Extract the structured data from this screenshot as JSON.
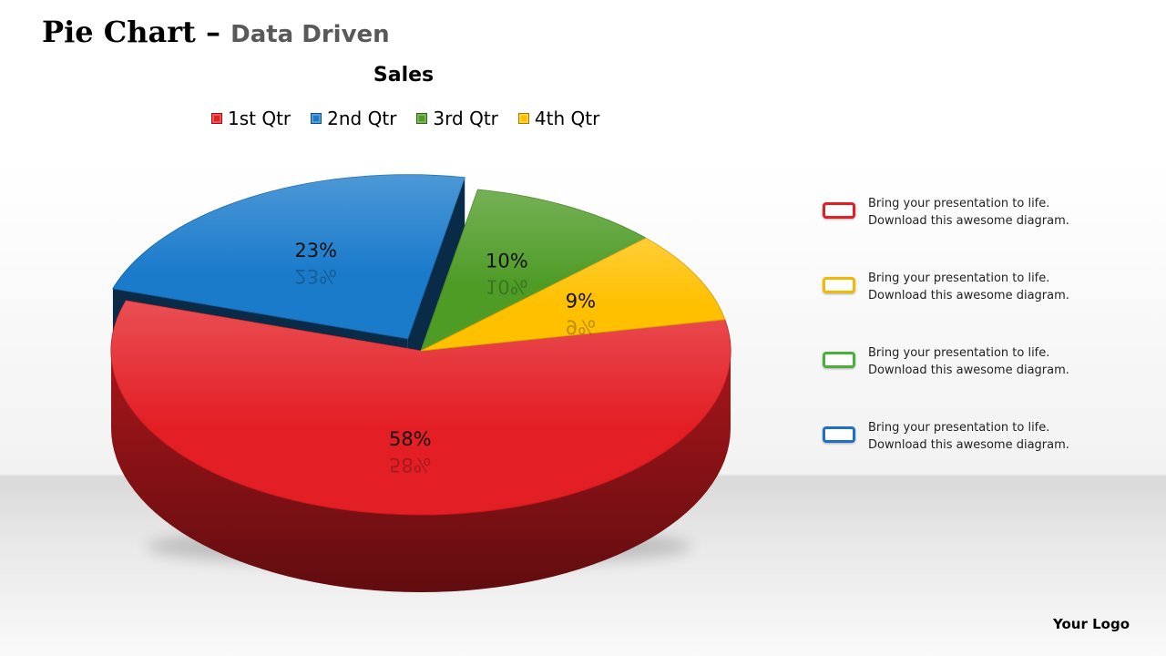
{
  "header": {
    "title": "Pie Chart –",
    "subtitle": "Data Driven"
  },
  "chart_data": {
    "type": "pie",
    "title": "Sales",
    "categories": [
      "1st Qtr",
      "2nd Qtr",
      "3rd Qtr",
      "4th Qtr"
    ],
    "values": [
      58,
      23,
      10,
      9
    ],
    "labels": [
      "58%",
      "23%",
      "10%",
      "9%"
    ],
    "colors": [
      "#e31e24",
      "#1a7bcb",
      "#4e9b26",
      "#ffc000"
    ],
    "exploded": "2nd Qtr",
    "legend_position": "top",
    "three_d": true
  },
  "notes": [
    {
      "line1": "Bring your presentation to life.",
      "line2": "Download this awesome diagram.",
      "color": "#e31e24"
    },
    {
      "line1": "Bring your presentation to life.",
      "line2": "Download this awesome diagram.",
      "color": "#f5b800"
    },
    {
      "line1": "Bring your presentation to life.",
      "line2": "Download this awesome diagram.",
      "color": "#4ab037"
    },
    {
      "line1": "Bring your presentation to life.",
      "line2": "Download this awesome diagram.",
      "color": "#1f6fc4"
    }
  ],
  "footer": {
    "logo_text": "Your Logo"
  }
}
